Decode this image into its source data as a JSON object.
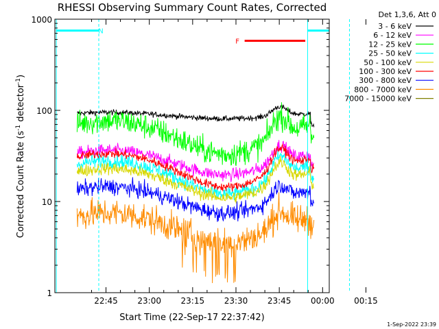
{
  "chart_data": {
    "type": "line",
    "title": "RHESSI Observing Summary Count Rates, Corrected",
    "xlabel": "Start Time (22-Sep-17 22:37:42)",
    "ylabel_main": "Corrected Count Rate (s",
    "ylabel_sup1": "-1",
    "ylabel_mid": " detector",
    "ylabel_sup2": "-1",
    "ylabel_end": ")",
    "yscale": "log",
    "ylim": [
      1,
      1000
    ],
    "xlim_min": [
      -17.7,
      77.3
    ],
    "x_ticks": [
      {
        "label": "22:45",
        "min": 0
      },
      {
        "label": "23:00",
        "min": 15
      },
      {
        "label": "23:15",
        "min": 30
      },
      {
        "label": "23:30",
        "min": 45
      },
      {
        "label": "23:45",
        "min": 60
      },
      {
        "label": "00:00",
        "min": 75
      },
      {
        "label": "00:15",
        "min": 90
      }
    ],
    "y_ticks": [
      {
        "label": "1",
        "value": 1
      },
      {
        "label": "10",
        "value": 10
      },
      {
        "label": "100",
        "value": 100
      },
      {
        "label": "1000",
        "value": 1000
      }
    ],
    "legend_title": "Det 1,3,6, Att 0",
    "legend_placement": "right",
    "series": [
      {
        "name": "3 - 6 keV",
        "color": "#000000",
        "mid": 88,
        "mod": 0.08,
        "lateAmp": 0.12,
        "noise": 0.03
      },
      {
        "name": "6 - 12 keV",
        "color": "#ff00ff",
        "mid": 28,
        "mod": 0.3,
        "lateAmp": 0.25,
        "noise": 0.07
      },
      {
        "name": "12 - 25 keV",
        "color": "#00ff00",
        "mid": 55,
        "mod": 0.4,
        "lateAmp": 0.3,
        "noise": 0.14
      },
      {
        "name": "25 - 50 keV",
        "color": "#00ffff",
        "mid": 20,
        "mod": 0.4,
        "lateAmp": 0.3,
        "noise": 0.08
      },
      {
        "name": "50 - 100 keV",
        "color": "#d8d800",
        "mid": 17,
        "mod": 0.35,
        "lateAmp": 0.3,
        "noise": 0.07
      },
      {
        "name": "100 - 300 keV",
        "color": "#ff0000",
        "mid": 24,
        "mod": 0.4,
        "lateAmp": 0.32,
        "noise": 0.05
      },
      {
        "name": "300 - 800 keV",
        "color": "#0000ff",
        "mid": 11,
        "mod": 0.32,
        "lateAmp": 0.2,
        "noise": 0.09
      },
      {
        "name": "800 - 7000 keV",
        "color": "#ff8c00",
        "mid": 5.5,
        "mod": 0.36,
        "lateAmp": 0.22,
        "noise": 0.16
      },
      {
        "name": "7000 - 15000 keV",
        "color": "#808000",
        "mid": 0,
        "mod": 0,
        "lateAmp": 0,
        "noise": 0
      }
    ],
    "data_start_min": -10.0,
    "data_end_min": 72.0,
    "night_lines_min": [
      -17.2,
      -2.5,
      69.8,
      84.3
    ],
    "markers": [
      {
        "label": "N",
        "color": "#00ffff",
        "kind": "night",
        "start_min": -17.2,
        "end_min": -2.5,
        "label_at_min": -1.8,
        "value": 750
      },
      {
        "label": "",
        "color": "#00ffff",
        "kind": "night",
        "start_min": 69.8,
        "end_min": 84.3,
        "label_at_min": 0,
        "value": 750
      },
      {
        "label": "F",
        "color": "#ff0000",
        "kind": "flare",
        "start_min": 48.0,
        "end_min": 69.0,
        "label_at_min": 45.5,
        "value": 580
      }
    ],
    "footer": "1-Sep-2022 23:39"
  }
}
